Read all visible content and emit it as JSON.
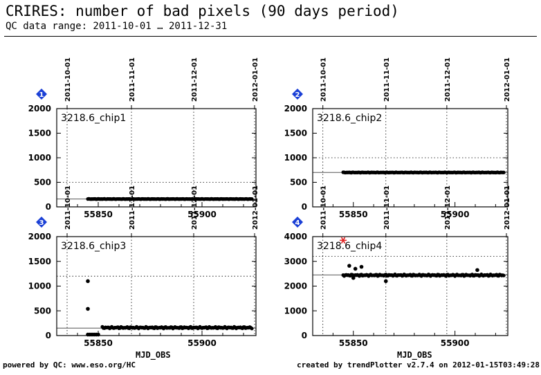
{
  "header": {
    "title": "CRIRES: number of bad pixels (90 days period)",
    "subtitle": "QC data range: 2011-10-01 … 2011-12-31"
  },
  "footer": {
    "left": "powered by QC: www.eso.org/HC",
    "right": "created by trendPlotter v2.7.4 on 2012-01-15T03:49:28"
  },
  "xlabel": "MJD_OBS",
  "colors": {
    "marker": "#000000",
    "badge": "#1a3fd6",
    "outlier": "#e02020",
    "reference": "#555555"
  },
  "chart_data": [
    {
      "type": "scatter",
      "panel": "1",
      "label": "3218.6_chip1",
      "xlim": [
        55830,
        55926
      ],
      "ylim": [
        0,
        2000
      ],
      "yticks": [
        0,
        500,
        1000,
        1500,
        2000
      ],
      "xticks": [
        55850,
        55900
      ],
      "date_ticks": [
        {
          "mjd": 55835,
          "label": "2011-10-01"
        },
        {
          "mjd": 55866,
          "label": "2011-11-01"
        },
        {
          "mjd": 55896,
          "label": "2011-12-01"
        },
        {
          "mjd": 55927,
          "label": "2012-01-01"
        }
      ],
      "reference": 160,
      "threshold": 500,
      "series": [
        {
          "x_start": 55845,
          "x_end": 55924,
          "step": 0.5,
          "baseline": 160,
          "jitter": 4
        }
      ],
      "points": [],
      "outliers": []
    },
    {
      "type": "scatter",
      "panel": "2",
      "label": "3218.6_chip2",
      "xlim": [
        55830,
        55926
      ],
      "ylim": [
        0,
        2000
      ],
      "yticks": [
        0,
        500,
        1000,
        1500,
        2000
      ],
      "xticks": [
        55850,
        55900
      ],
      "date_ticks": [
        {
          "mjd": 55835,
          "label": "2011-10-01"
        },
        {
          "mjd": 55866,
          "label": "2011-11-01"
        },
        {
          "mjd": 55896,
          "label": "2011-12-01"
        },
        {
          "mjd": 55927,
          "label": "2012-01-01"
        }
      ],
      "reference": 700,
      "threshold": 1000,
      "series": [
        {
          "x_start": 55845,
          "x_end": 55924,
          "step": 0.5,
          "baseline": 700,
          "jitter": 5
        }
      ],
      "points": [],
      "outliers": []
    },
    {
      "type": "scatter",
      "panel": "3",
      "label": "3218.6_chip3",
      "xlim": [
        55830,
        55926
      ],
      "ylim": [
        0,
        2000
      ],
      "yticks": [
        0,
        500,
        1000,
        1500,
        2000
      ],
      "xticks": [
        55850,
        55900
      ],
      "date_ticks": [
        {
          "mjd": 55835,
          "label": "2011-10-01"
        },
        {
          "mjd": 55866,
          "label": "2011-11-01"
        },
        {
          "mjd": 55896,
          "label": "2011-12-01"
        },
        {
          "mjd": 55927,
          "label": "2012-01-01"
        }
      ],
      "reference": 150,
      "threshold": 1200,
      "series": [
        {
          "x_start": 55852,
          "x_end": 55924,
          "step": 0.5,
          "baseline": 160,
          "jitter": 18
        }
      ],
      "points": [
        {
          "x": 55845,
          "y": 1100
        },
        {
          "x": 55845,
          "y": 540
        },
        {
          "x": 55845,
          "y": 20
        },
        {
          "x": 55846,
          "y": 20
        },
        {
          "x": 55847,
          "y": 20
        },
        {
          "x": 55848,
          "y": 20
        },
        {
          "x": 55849,
          "y": 20
        },
        {
          "x": 55850,
          "y": 20
        }
      ],
      "outliers": []
    },
    {
      "type": "scatter",
      "panel": "4",
      "label": "3218.6_chip4",
      "xlim": [
        55830,
        55926
      ],
      "ylim": [
        0,
        4000
      ],
      "yticks": [
        0,
        1000,
        2000,
        3000,
        4000
      ],
      "xticks": [
        55850,
        55900
      ],
      "date_ticks": [
        {
          "mjd": 55835,
          "label": "2011-10-01"
        },
        {
          "mjd": 55866,
          "label": "2011-11-01"
        },
        {
          "mjd": 55896,
          "label": "2011-12-01"
        },
        {
          "mjd": 55927,
          "label": "2012-01-01"
        }
      ],
      "reference": 2450,
      "threshold": 3200,
      "series": [
        {
          "x_start": 55845,
          "x_end": 55924,
          "step": 0.5,
          "baseline": 2440,
          "jitter": 35
        }
      ],
      "points": [
        {
          "x": 55848,
          "y": 2820
        },
        {
          "x": 55851,
          "y": 2700
        },
        {
          "x": 55854,
          "y": 2780
        },
        {
          "x": 55850,
          "y": 2330
        },
        {
          "x": 55866,
          "y": 2200
        },
        {
          "x": 55911,
          "y": 2650
        }
      ],
      "outliers": [
        {
          "x": 55845,
          "y": 3850
        }
      ]
    }
  ]
}
